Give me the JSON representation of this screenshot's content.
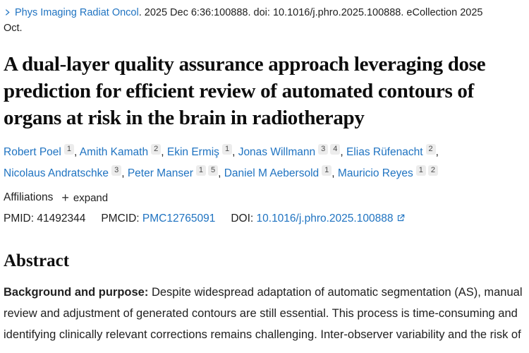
{
  "colors": {
    "link": "#1f73c1",
    "text": "#212121",
    "title": "#0d0d0d",
    "badge_bg": "#ececec",
    "badge_text": "#4a4a4a"
  },
  "journal_line": {
    "journal": "Phys Imaging Radiat Oncol",
    "citation": ". 2025 Dec 6:36:100888. doi: 10.1016/j.phro.2025.100888. eCollection 2025 Oct."
  },
  "title": "A dual-layer quality assurance approach leveraging dose prediction for efficient review of automated contours of organs at risk in the brain in radiotherapy",
  "authors": [
    {
      "name": "Robert Poel",
      "affiliations": [
        "1"
      ]
    },
    {
      "name": "Amith Kamath",
      "affiliations": [
        "2"
      ]
    },
    {
      "name": "Ekin Ermiş",
      "affiliations": [
        "1"
      ]
    },
    {
      "name": "Jonas Willmann",
      "affiliations": [
        "3",
        "4"
      ]
    },
    {
      "name": "Elias Rüfenacht",
      "affiliations": [
        "2"
      ]
    },
    {
      "name": "Nicolaus Andratschke",
      "affiliations": [
        "3"
      ]
    },
    {
      "name": "Peter Manser",
      "affiliations": [
        "1",
        "5"
      ]
    },
    {
      "name": "Daniel M Aebersold",
      "affiliations": [
        "1"
      ]
    },
    {
      "name": "Mauricio Reyes",
      "affiliations": [
        "1",
        "2"
      ]
    }
  ],
  "affiliations": {
    "label": "Affiliations",
    "expand_icon": "+",
    "expand_label": "expand"
  },
  "identifiers": {
    "pmid_label": "PMID:",
    "pmid": "41492344",
    "pmcid_label": "PMCID:",
    "pmcid": "PMC12765091",
    "doi_label": "DOI:",
    "doi": "10.1016/j.phro.2025.100888"
  },
  "abstract": {
    "heading": "Abstract",
    "background_label": "Background and purpose:",
    "background_text": "Despite widespread adaptation of automatic segmentation (AS), manual review and adjustment of generated contours are still essential. This process is time-consuming and identifying clinically relevant corrections remains challenging. Inter-observer variability and the risk of"
  }
}
